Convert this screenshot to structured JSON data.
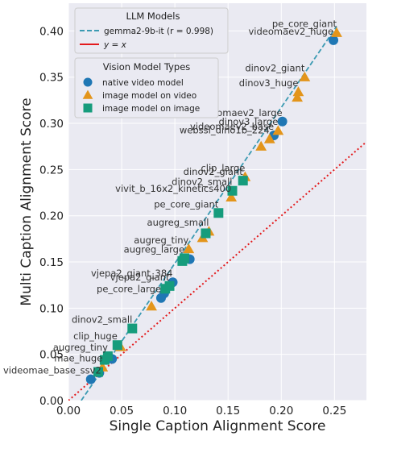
{
  "chart_data": {
    "type": "scatter",
    "xlabel": "Single Caption Alignment Score",
    "ylabel": "Multi Caption Alignment Score",
    "xlim": [
      0.0,
      0.28
    ],
    "ylim": [
      0.0,
      0.43
    ],
    "xticks": [
      "0.00",
      "0.05",
      "0.10",
      "0.15",
      "0.20",
      "0.25"
    ],
    "yticks": [
      "0.00",
      "0.05",
      "0.10",
      "0.15",
      "0.20",
      "0.25",
      "0.30",
      "0.35",
      "0.40"
    ],
    "grid": true,
    "background": "#eaeaf2",
    "legend_fit": {
      "title": "LLM Models",
      "fit_label": "gemma2-9b-it (r = 0.998)",
      "identity_label": "y = x",
      "placement": "top-left"
    },
    "legend_types": {
      "title": "Vision Model Types",
      "placement": "upper-left",
      "items": [
        "native video model",
        "image model on video",
        "image model on image"
      ]
    },
    "colors": {
      "native": "#1f77b4",
      "image_video": "#e3951b",
      "image_image": "#169c7c",
      "fit_line": "#3b9ab2",
      "identity_line": "#e31a1c"
    },
    "fit_line": {
      "x": [
        0.012,
        0.252
      ],
      "y": [
        0.0,
        0.405
      ]
    },
    "identity_line": {
      "x": [
        0.0,
        0.28
      ],
      "y": [
        0.0,
        0.28
      ]
    },
    "series": [
      {
        "name": "native video model",
        "marker": "circle",
        "points": [
          {
            "x": 0.249,
            "y": 0.39
          },
          {
            "x": 0.201,
            "y": 0.302
          },
          {
            "x": 0.193,
            "y": 0.287
          },
          {
            "x": 0.114,
            "y": 0.153
          },
          {
            "x": 0.098,
            "y": 0.128
          },
          {
            "x": 0.09,
            "y": 0.116
          },
          {
            "x": 0.087,
            "y": 0.111
          },
          {
            "x": 0.041,
            "y": 0.045
          },
          {
            "x": 0.029,
            "y": 0.03
          },
          {
            "x": 0.021,
            "y": 0.023
          }
        ]
      },
      {
        "name": "image model on video",
        "marker": "triangle",
        "points": [
          {
            "x": 0.252,
            "y": 0.398
          },
          {
            "x": 0.222,
            "y": 0.35
          },
          {
            "x": 0.216,
            "y": 0.334
          },
          {
            "x": 0.215,
            "y": 0.328
          },
          {
            "x": 0.197,
            "y": 0.292
          },
          {
            "x": 0.189,
            "y": 0.283
          },
          {
            "x": 0.181,
            "y": 0.275
          },
          {
            "x": 0.166,
            "y": 0.242
          },
          {
            "x": 0.153,
            "y": 0.22
          },
          {
            "x": 0.132,
            "y": 0.183
          },
          {
            "x": 0.126,
            "y": 0.176
          },
          {
            "x": 0.113,
            "y": 0.164
          },
          {
            "x": 0.078,
            "y": 0.102
          },
          {
            "x": 0.049,
            "y": 0.058
          },
          {
            "x": 0.032,
            "y": 0.036
          }
        ]
      },
      {
        "name": "image model on image",
        "marker": "square",
        "points": [
          {
            "x": 0.164,
            "y": 0.238
          },
          {
            "x": 0.154,
            "y": 0.227
          },
          {
            "x": 0.141,
            "y": 0.203
          },
          {
            "x": 0.129,
            "y": 0.181
          },
          {
            "x": 0.109,
            "y": 0.154
          },
          {
            "x": 0.107,
            "y": 0.151
          },
          {
            "x": 0.095,
            "y": 0.124
          },
          {
            "x": 0.091,
            "y": 0.121
          },
          {
            "x": 0.06,
            "y": 0.078
          },
          {
            "x": 0.046,
            "y": 0.06
          },
          {
            "x": 0.037,
            "y": 0.048
          },
          {
            "x": 0.034,
            "y": 0.044
          },
          {
            "x": 0.028,
            "y": 0.031
          }
        ]
      }
    ],
    "annotations": [
      {
        "text": "pe_core_giant",
        "x": 0.252,
        "y": 0.398
      },
      {
        "text": "videomaev2_huge",
        "x": 0.249,
        "y": 0.39
      },
      {
        "text": "dinov2_giant",
        "x": 0.222,
        "y": 0.35
      },
      {
        "text": "dinov3_huge",
        "x": 0.216,
        "y": 0.334
      },
      {
        "text": "videomaev2_large",
        "x": 0.201,
        "y": 0.302
      },
      {
        "text": "dinov3_large",
        "x": 0.197,
        "y": 0.292
      },
      {
        "text": "videomaev2_base",
        "x": 0.193,
        "y": 0.287
      },
      {
        "text": "webssl_dino1b_224",
        "x": 0.189,
        "y": 0.283
      },
      {
        "text": "clip_large",
        "x": 0.166,
        "y": 0.242
      },
      {
        "text": "dinov2_giant",
        "x": 0.164,
        "y": 0.238
      },
      {
        "text": "dinov2_small",
        "x": 0.154,
        "y": 0.227
      },
      {
        "text": "pe_core_giant",
        "x": 0.141,
        "y": 0.203
      },
      {
        "text": "vivit_b_16x2_kinetics400",
        "x": 0.153,
        "y": 0.22
      },
      {
        "text": "augreg_small",
        "x": 0.132,
        "y": 0.183
      },
      {
        "text": "augreg_tiny",
        "x": 0.113,
        "y": 0.164
      },
      {
        "text": "augreg_large",
        "x": 0.109,
        "y": 0.154
      },
      {
        "text": "vjepa2_giant_384",
        "x": 0.098,
        "y": 0.128
      },
      {
        "text": "vjepa2_giant",
        "x": 0.095,
        "y": 0.124
      },
      {
        "text": "pe_core_large",
        "x": 0.087,
        "y": 0.111
      },
      {
        "text": "dinov2_small",
        "x": 0.06,
        "y": 0.078
      },
      {
        "text": "clip_huge",
        "x": 0.046,
        "y": 0.06
      },
      {
        "text": "augreg_tiny",
        "x": 0.037,
        "y": 0.048
      },
      {
        "text": "mae_huge",
        "x": 0.032,
        "y": 0.036
      },
      {
        "text": "videomae_base_ssv2",
        "x": 0.021,
        "y": 0.023
      }
    ]
  }
}
